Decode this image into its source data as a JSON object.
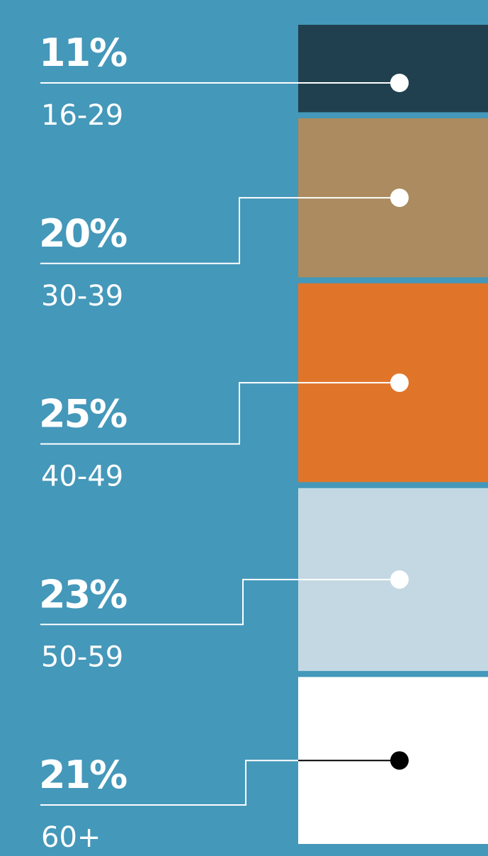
{
  "chart_data": {
    "type": "stacked_column",
    "categories": [
      "16-29",
      "30-39",
      "40-49",
      "50-59",
      "60+"
    ],
    "values": [
      11,
      20,
      25,
      23,
      21
    ],
    "value_labels": [
      "11%",
      "20%",
      "25%",
      "23%",
      "21%"
    ],
    "colors": [
      "#21404f",
      "#ab8b5f",
      "#e0752a",
      "#c3d8e3",
      "#ffffff"
    ],
    "marker_colors": [
      "#ffffff",
      "#ffffff",
      "#ffffff",
      "#ffffff",
      "#000000"
    ]
  }
}
